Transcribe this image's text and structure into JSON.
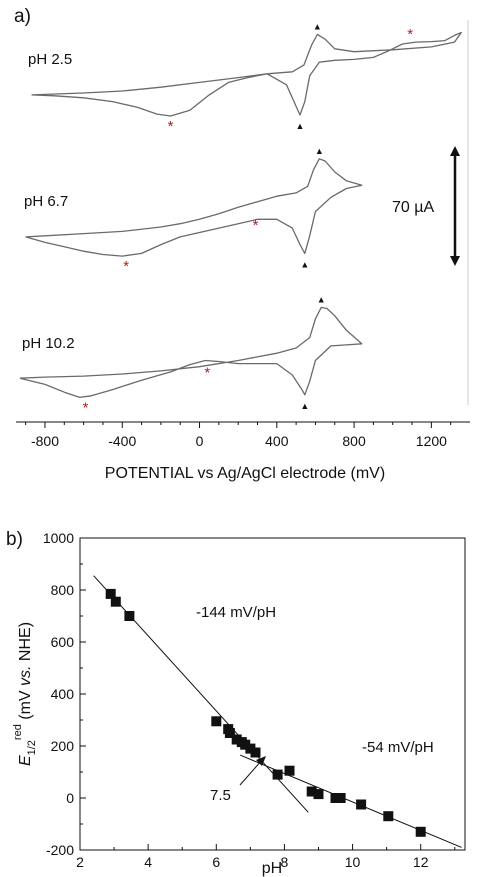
{
  "chart_data": [
    {
      "panel_label": "a)",
      "type": "line",
      "xlabel": "POTENTIAL vs Ag/AgCl electrode (mV)",
      "xlim": [
        -950,
        1400
      ],
      "xticks": [
        -800,
        -400,
        0,
        400,
        800,
        1200
      ],
      "scale_bar_label": "70 µA",
      "marker_glyphs": {
        "star": "*",
        "triangle": "▲"
      },
      "series": [
        {
          "name": "pH 2.5",
          "curve": [
            [
              -870,
              -0.56
            ],
            [
              -750,
              -0.58
            ],
            [
              -600,
              -0.62
            ],
            [
              -450,
              -0.7
            ],
            [
              -320,
              -0.82
            ],
            [
              -220,
              -0.96
            ],
            [
              -150,
              -1.0
            ],
            [
              -50,
              -0.88
            ],
            [
              50,
              -0.56
            ],
            [
              150,
              -0.3
            ],
            [
              250,
              -0.2
            ],
            [
              350,
              -0.12
            ],
            [
              450,
              -0.35
            ],
            [
              500,
              -0.8
            ],
            [
              520,
              -0.98
            ],
            [
              545,
              -0.7
            ],
            [
              570,
              -0.16
            ],
            [
              620,
              0.12
            ],
            [
              700,
              0.16
            ],
            [
              800,
              0.18
            ],
            [
              900,
              0.22
            ],
            [
              980,
              0.36
            ],
            [
              1050,
              0.5
            ],
            [
              1120,
              0.54
            ],
            [
              1200,
              0.55
            ],
            [
              1270,
              0.57
            ],
            [
              1320,
              0.68
            ],
            [
              1355,
              0.74
            ],
            [
              1320,
              0.54
            ],
            [
              1200,
              0.44
            ],
            [
              1000,
              0.38
            ],
            [
              800,
              0.34
            ],
            [
              700,
              0.4
            ],
            [
              650,
              0.6
            ],
            [
              610,
              0.7
            ],
            [
              580,
              0.48
            ],
            [
              540,
              0.06
            ],
            [
              480,
              -0.08
            ],
            [
              350,
              -0.12
            ],
            [
              200,
              -0.2
            ],
            [
              0,
              -0.3
            ],
            [
              -200,
              -0.4
            ],
            [
              -400,
              -0.48
            ],
            [
              -600,
              -0.52
            ],
            [
              -800,
              -0.55
            ],
            [
              -870,
              -0.56
            ]
          ],
          "stars": [
            [
              -150,
              -1.0
            ],
            [
              1090,
              0.54
            ]
          ],
          "triangles": [
            [
              520,
              -0.98
            ],
            [
              610,
              0.7
            ]
          ]
        },
        {
          "name": "pH 6.7",
          "curve": [
            [
              -900,
              -0.58
            ],
            [
              -800,
              -0.68
            ],
            [
              -700,
              -0.76
            ],
            [
              -600,
              -0.84
            ],
            [
              -500,
              -0.9
            ],
            [
              -400,
              -0.93
            ],
            [
              -300,
              -0.88
            ],
            [
              -200,
              -0.72
            ],
            [
              -100,
              -0.58
            ],
            [
              0,
              -0.5
            ],
            [
              100,
              -0.42
            ],
            [
              200,
              -0.34
            ],
            [
              300,
              -0.26
            ],
            [
              400,
              -0.26
            ],
            [
              480,
              -0.42
            ],
            [
              520,
              -0.72
            ],
            [
              545,
              -0.88
            ],
            [
              570,
              -0.56
            ],
            [
              600,
              -0.12
            ],
            [
              680,
              0.14
            ],
            [
              760,
              0.3
            ],
            [
              840,
              0.36
            ],
            [
              760,
              0.44
            ],
            [
              700,
              0.6
            ],
            [
              650,
              0.8
            ],
            [
              620,
              0.84
            ],
            [
              590,
              0.64
            ],
            [
              560,
              0.34
            ],
            [
              500,
              0.22
            ],
            [
              400,
              0.16
            ],
            [
              300,
              0.06
            ],
            [
              200,
              -0.04
            ],
            [
              100,
              -0.16
            ],
            [
              0,
              -0.26
            ],
            [
              -100,
              -0.34
            ],
            [
              -200,
              -0.4
            ],
            [
              -400,
              -0.48
            ],
            [
              -600,
              -0.52
            ],
            [
              -800,
              -0.56
            ],
            [
              -900,
              -0.58
            ]
          ],
          "stars": [
            [
              290,
              -0.18
            ],
            [
              -380,
              -0.93
            ]
          ],
          "triangles": [
            [
              545,
              -0.88
            ],
            [
              620,
              0.84
            ]
          ]
        },
        {
          "name": "pH 10.2",
          "curve": [
            [
              -930,
              -0.58
            ],
            [
              -800,
              -0.7
            ],
            [
              -700,
              -0.85
            ],
            [
              -620,
              -0.95
            ],
            [
              -560,
              -0.92
            ],
            [
              -450,
              -0.8
            ],
            [
              -300,
              -0.62
            ],
            [
              -150,
              -0.46
            ],
            [
              -50,
              -0.32
            ],
            [
              30,
              -0.24
            ],
            [
              100,
              -0.26
            ],
            [
              200,
              -0.3
            ],
            [
              300,
              -0.3
            ],
            [
              400,
              -0.3
            ],
            [
              480,
              -0.52
            ],
            [
              530,
              -0.8
            ],
            [
              545,
              -0.9
            ],
            [
              570,
              -0.64
            ],
            [
              600,
              -0.24
            ],
            [
              680,
              0.04
            ],
            [
              760,
              0.06
            ],
            [
              840,
              0.08
            ],
            [
              760,
              0.34
            ],
            [
              700,
              0.62
            ],
            [
              660,
              0.76
            ],
            [
              630,
              0.78
            ],
            [
              600,
              0.56
            ],
            [
              570,
              0.2
            ],
            [
              500,
              0.0
            ],
            [
              400,
              -0.1
            ],
            [
              200,
              -0.24
            ],
            [
              0,
              -0.36
            ],
            [
              -200,
              -0.44
            ],
            [
              -400,
              -0.5
            ],
            [
              -600,
              -0.54
            ],
            [
              -800,
              -0.56
            ],
            [
              -930,
              -0.58
            ]
          ],
          "stars": [
            [
              40,
              -0.28
            ],
            [
              -590,
              -0.95
            ]
          ],
          "triangles": [
            [
              545,
              -0.9
            ],
            [
              630,
              0.78
            ]
          ]
        }
      ]
    },
    {
      "panel_label": "b)",
      "type": "scatter",
      "xlabel": "pH",
      "ylabel_main": "E",
      "ylabel_sub": "1/2",
      "ylabel_sup": "red",
      "ylabel_rest": " (mV ",
      "ylabel_italic": "vs.",
      "ylabel_end": " NHE)",
      "xlim": [
        2,
        13.3
      ],
      "ylim": [
        -200,
        1000
      ],
      "xticks": [
        2,
        4,
        6,
        8,
        10,
        12
      ],
      "yticks": [
        -200,
        0,
        200,
        400,
        600,
        800,
        1000
      ],
      "points": [
        [
          2.9,
          785
        ],
        [
          3.05,
          755
        ],
        [
          3.45,
          700
        ],
        [
          6.0,
          295
        ],
        [
          6.35,
          265
        ],
        [
          6.4,
          250
        ],
        [
          6.6,
          225
        ],
        [
          6.75,
          215
        ],
        [
          6.85,
          205
        ],
        [
          7.0,
          190
        ],
        [
          7.15,
          175
        ],
        [
          7.8,
          90
        ],
        [
          8.15,
          105
        ],
        [
          8.8,
          25
        ],
        [
          9.0,
          15
        ],
        [
          9.5,
          0
        ],
        [
          9.65,
          0
        ],
        [
          10.25,
          -25
        ],
        [
          11.05,
          -70
        ],
        [
          12.0,
          -130
        ]
      ],
      "fit_lines": [
        {
          "label": "-144 mV/pH",
          "from": [
            2.4,
            855
          ],
          "to": [
            8.7,
            -55
          ]
        },
        {
          "label": "-54 mV/pH",
          "from": [
            6.7,
            165
          ],
          "to": [
            13.2,
            -190
          ]
        }
      ],
      "intersection_label": "7.5"
    }
  ]
}
